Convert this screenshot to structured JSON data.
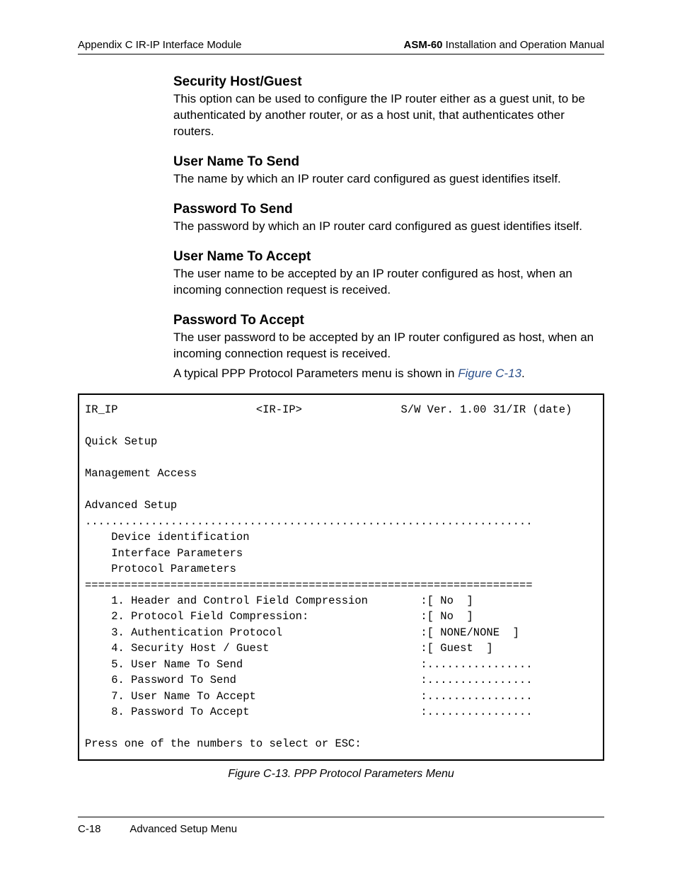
{
  "header": {
    "left": "Appendix C  IR-IP Interface Module",
    "right_bold": "ASM-60",
    "right_rest": " Installation and Operation Manual"
  },
  "sections": [
    {
      "title": "Security Host/Guest",
      "paras": [
        "This option can be used to configure the IP router either as a guest unit, to be authenticated by another router, or as a host unit, that authenticates other routers."
      ]
    },
    {
      "title": "User Name To Send",
      "paras": [
        "The name by which an IP router card configured as guest identifies itself."
      ]
    },
    {
      "title": "Password To Send",
      "paras": [
        "The password by which an IP router card configured as guest identifies itself."
      ]
    },
    {
      "title": "User Name To Accept",
      "paras": [
        "The user name to be accepted by an IP router configured as host, when an incoming connection request is received."
      ]
    },
    {
      "title": "Password To Accept",
      "paras": [
        "The user password to be accepted by an IP router configured as host, when an incoming connection request is received.",
        "A typical PPP Protocol Parameters menu is shown in "
      ],
      "figref": "Figure C-13",
      "after_figref": "."
    }
  ],
  "terminal": {
    "lines": [
      "IR_IP                     <IR-IP>               S/W Ver. 1.00 31/IR (date)",
      "",
      "Quick Setup",
      "",
      "Management Access",
      "",
      "Advanced Setup",
      "....................................................................",
      "    Device identification",
      "    Interface Parameters",
      "    Protocol Parameters",
      "====================================================================",
      "    1. Header and Control Field Compression        :[ No  ]",
      "    2. Protocol Field Compression:                 :[ No  ]",
      "    3. Authentication Protocol                     :[ NONE/NONE  ]",
      "    4. Security Host / Guest                       :[ Guest  ]",
      "    5. User Name To Send                           :................",
      "    6. Password To Send                            :................",
      "    7. User Name To Accept                         :................",
      "    8. Password To Accept                          :................",
      "",
      "Press one of the numbers to select or ESC:"
    ]
  },
  "caption": "Figure C-13.  PPP Protocol Parameters Menu",
  "footer": {
    "page": "C-18",
    "section": "Advanced Setup Menu"
  }
}
